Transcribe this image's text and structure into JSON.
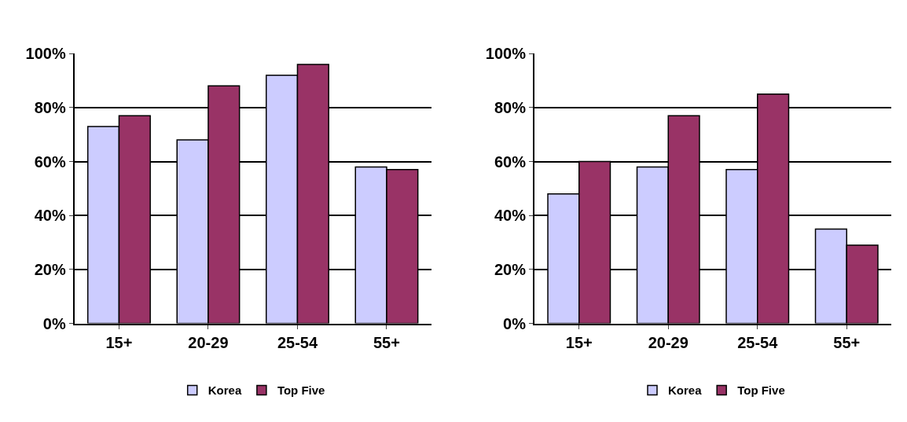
{
  "chart_data": [
    {
      "type": "bar",
      "categories": [
        "15+",
        "20-29",
        "25-54",
        "55+"
      ],
      "series": [
        {
          "name": "Korea",
          "color": "#ccccff",
          "values": [
            73,
            68,
            92,
            58
          ]
        },
        {
          "name": "Top Five",
          "color": "#993366",
          "values": [
            77,
            88,
            96,
            57
          ]
        }
      ],
      "ylim": [
        0,
        100
      ],
      "yticks": [
        {
          "value": 0,
          "label": "0%"
        },
        {
          "value": 20,
          "label": "20%"
        },
        {
          "value": 40,
          "label": "40%"
        },
        {
          "value": 60,
          "label": "60%"
        },
        {
          "value": 80,
          "label": "80%"
        },
        {
          "value": 100,
          "label": "100%"
        }
      ],
      "grid": "y",
      "legend": "bottom"
    },
    {
      "type": "bar",
      "categories": [
        "15+",
        "20-29",
        "25-54",
        "55+"
      ],
      "series": [
        {
          "name": "Korea",
          "color": "#ccccff",
          "values": [
            48,
            58,
            57,
            35
          ]
        },
        {
          "name": "Top Five",
          "color": "#993366",
          "values": [
            60,
            77,
            85,
            29
          ]
        }
      ],
      "ylim": [
        0,
        100
      ],
      "yticks": [
        {
          "value": 0,
          "label": "0%"
        },
        {
          "value": 20,
          "label": "20%"
        },
        {
          "value": 40,
          "label": "40%"
        },
        {
          "value": 60,
          "label": "60%"
        },
        {
          "value": 80,
          "label": "80%"
        },
        {
          "value": 100,
          "label": "100%"
        }
      ],
      "grid": "y",
      "legend": "bottom"
    }
  ]
}
